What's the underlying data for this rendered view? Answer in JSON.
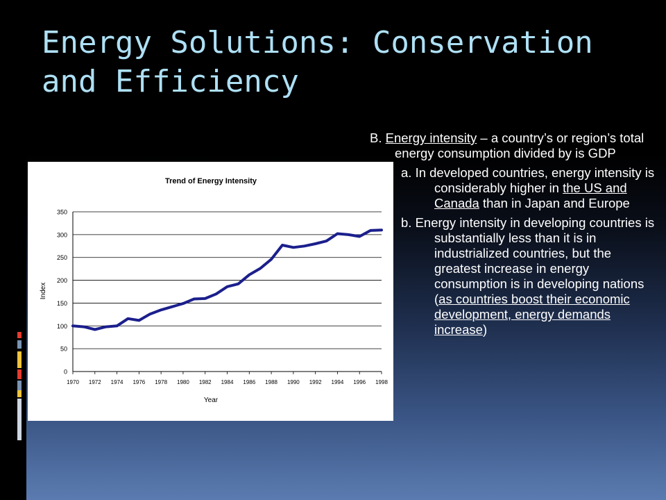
{
  "slide": {
    "title": "Energy Solutions: Conservation and Efficiency",
    "body": {
      "pB": {
        "lead": "B. ",
        "term": "Energy intensity",
        "rest": " – a country’s or region’s total energy consumption divided by is GDP"
      },
      "pa": {
        "lead": "a. In developed countries, energy intensity is considerably higher in ",
        "u": "the US and Canada",
        "tail": " than in Japan and Europe"
      },
      "pb": {
        "lead": "b. Energy intensity in developing countries is substantially less than it is in industrialized countries, but the greatest increase in energy consumption is in developing nations (",
        "u": "as countries boost their economic development, energy demands increase",
        "tail": ")"
      }
    },
    "decoration_colors": [
      "#e23b2f",
      "#7a94b3",
      "#f0c33c",
      "#e23b2f",
      "#7a94b3",
      "#f0c33c",
      "#cfd6e2"
    ]
  },
  "chart_data": {
    "type": "line",
    "title": "Trend of Energy Intensity",
    "xlabel": "Year",
    "ylabel": "Index",
    "xlim": [
      1970,
      1998
    ],
    "ylim": [
      0,
      350
    ],
    "yticks": [
      0,
      50,
      100,
      150,
      200,
      250,
      300,
      350
    ],
    "xticks": [
      1970,
      1972,
      1974,
      1976,
      1978,
      1980,
      1982,
      1984,
      1986,
      1988,
      1990,
      1992,
      1994,
      1996,
      1998
    ],
    "grid": true,
    "series_color": "#1b1f8c",
    "series": [
      {
        "x": [
          1970,
          1971,
          1972,
          1973,
          1974,
          1975,
          1976,
          1977,
          1978,
          1979,
          1980,
          1981,
          1982,
          1983,
          1984,
          1985,
          1986,
          1987,
          1988,
          1989,
          1990,
          1991,
          1992,
          1993,
          1994,
          1995,
          1996,
          1997,
          1998
        ],
        "values": [
          100,
          98,
          92,
          98,
          100,
          116,
          112,
          126,
          135,
          142,
          149,
          159,
          160,
          170,
          186,
          192,
          212,
          226,
          246,
          277,
          272,
          275,
          280,
          286,
          302,
          300,
          296,
          309,
          310
        ]
      }
    ]
  }
}
